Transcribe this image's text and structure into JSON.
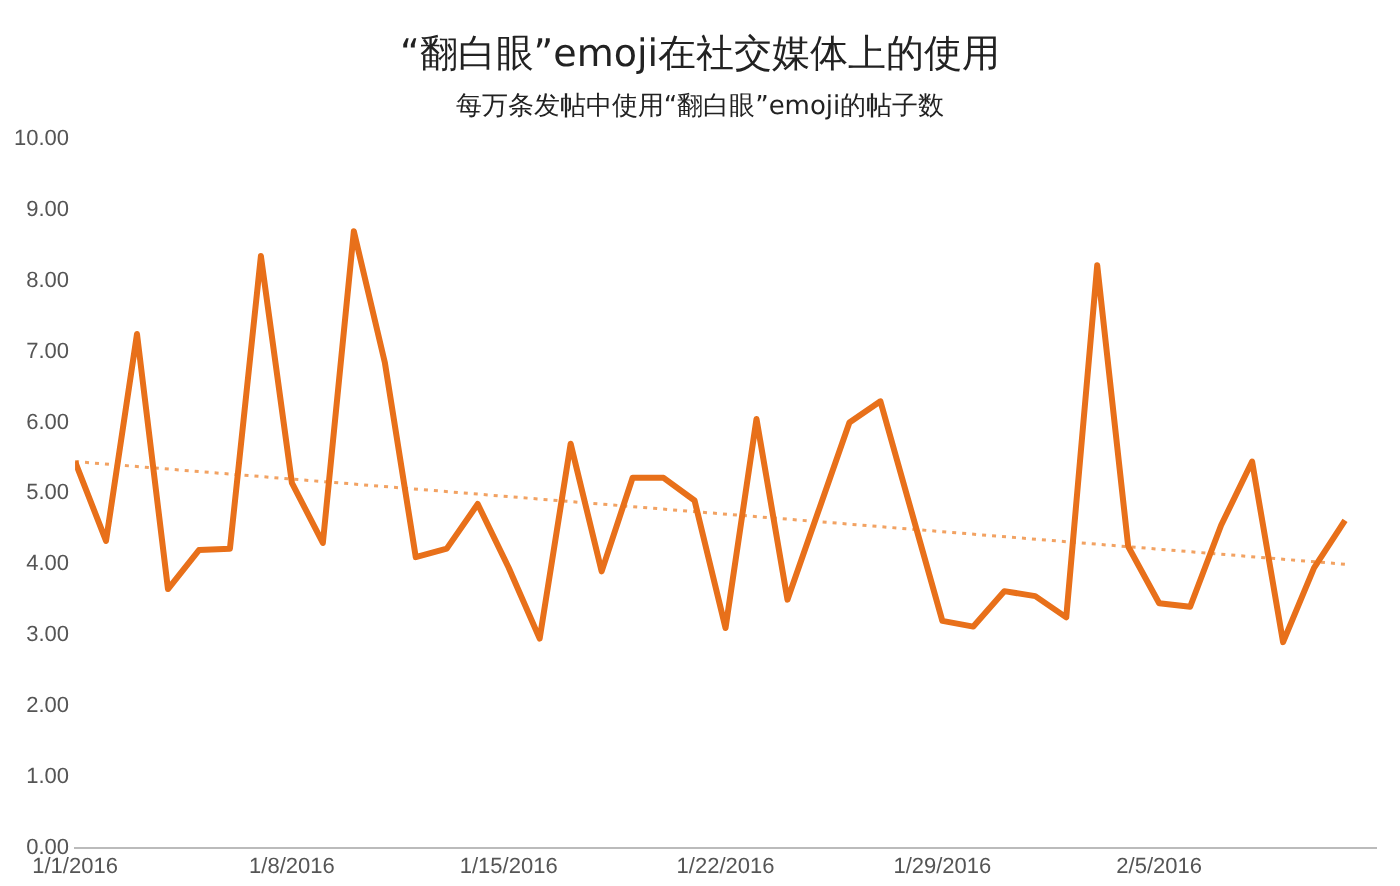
{
  "chart_data": {
    "type": "line",
    "title": "“翻白眼”emoji在社交媒体上的使用",
    "subtitle": "每万条发帖中使用“翻白眼”emoji的帖子数",
    "x": [
      "2016-01-01",
      "2016-01-02",
      "2016-01-03",
      "2016-01-04",
      "2016-01-05",
      "2016-01-06",
      "2016-01-07",
      "2016-01-08",
      "2016-01-09",
      "2016-01-10",
      "2016-01-11",
      "2016-01-12",
      "2016-01-13",
      "2016-01-14",
      "2016-01-15",
      "2016-01-16",
      "2016-01-17",
      "2016-01-18",
      "2016-01-19",
      "2016-01-20",
      "2016-01-21",
      "2016-01-22",
      "2016-01-23",
      "2016-01-24",
      "2016-01-25",
      "2016-01-26",
      "2016-01-27",
      "2016-01-28",
      "2016-01-29",
      "2016-01-30",
      "2016-01-31",
      "2016-02-01",
      "2016-02-02",
      "2016-02-03",
      "2016-02-04",
      "2016-02-05",
      "2016-02-06",
      "2016-02-07",
      "2016-02-08",
      "2016-02-09",
      "2016-02-10",
      "2016-02-11"
    ],
    "series": [
      {
        "color": "#e8701a",
        "line_style": "solid",
        "values": [
          5.45,
          4.33,
          7.25,
          3.65,
          4.2,
          4.22,
          8.35,
          5.15,
          4.3,
          8.7,
          6.85,
          4.1,
          4.22,
          4.85,
          3.95,
          2.95,
          5.7,
          3.9,
          5.22,
          5.22,
          4.9,
          3.1,
          6.05,
          3.5,
          4.75,
          6.0,
          6.3,
          4.75,
          3.2,
          3.12,
          3.62,
          3.55,
          3.25,
          8.22,
          4.25,
          3.45,
          3.4,
          4.55,
          5.45,
          2.9,
          3.95,
          4.62
        ]
      },
      {
        "type": "line",
        "color": "#f2a262",
        "line_style": "dotted",
        "x": [
          "2016-01-01",
          "2016-02-11"
        ],
        "values": [
          5.45,
          4.0
        ]
      }
    ],
    "xlim": [
      "2016-01-01",
      "2016-02-12"
    ],
    "xticks": [
      {
        "value": "2016-01-01",
        "label": "1/1/2016"
      },
      {
        "value": "2016-01-08",
        "label": "1/8/2016"
      },
      {
        "value": "2016-01-15",
        "label": "1/15/2016"
      },
      {
        "value": "2016-01-22",
        "label": "1/22/2016"
      },
      {
        "value": "2016-01-29",
        "label": "1/29/2016"
      },
      {
        "value": "2016-02-05",
        "label": "2/5/2016"
      }
    ],
    "ylim": [
      0,
      10
    ],
    "yticks": [
      {
        "value": 0,
        "label": "0.00"
      },
      {
        "value": 1,
        "label": "1.00"
      },
      {
        "value": 2,
        "label": "2.00"
      },
      {
        "value": 3,
        "label": "3.00"
      },
      {
        "value": 4,
        "label": "4.00"
      },
      {
        "value": 5,
        "label": "5.00"
      },
      {
        "value": 6,
        "label": "6.00"
      },
      {
        "value": 7,
        "label": "7.00"
      },
      {
        "value": 8,
        "label": "8.00"
      },
      {
        "value": 9,
        "label": "9.00"
      },
      {
        "value": 10,
        "label": "10.00"
      }
    ],
    "grid": false,
    "legend": false,
    "marker": "none"
  }
}
